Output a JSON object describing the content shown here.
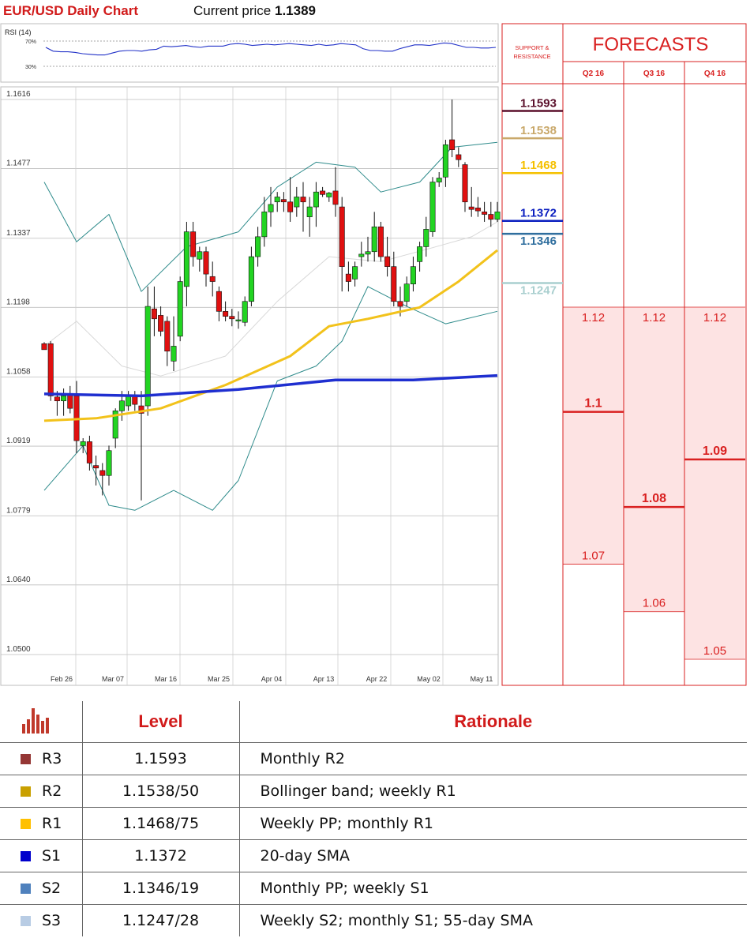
{
  "header": {
    "title": "EUR/USD Daily Chart",
    "price_label": "Current price",
    "price_value": "1.1389"
  },
  "rsi": {
    "label": "RSI (14)",
    "levels": [
      "70%",
      "30%"
    ],
    "values": [
      60,
      54,
      53,
      53,
      52,
      50,
      49,
      48,
      48,
      51,
      54,
      55,
      55,
      54,
      56,
      57,
      62,
      61,
      62,
      63,
      61,
      60,
      62,
      62,
      62,
      65,
      66,
      65,
      63,
      64,
      65,
      64,
      65,
      66,
      65,
      64,
      63,
      65,
      63,
      64,
      66,
      65,
      64,
      58,
      55,
      55,
      54,
      54,
      58,
      61,
      64,
      64,
      63,
      65,
      67,
      66,
      63,
      60,
      60,
      59,
      59,
      60
    ]
  },
  "chart_data": {
    "type": "candlestick",
    "y_ticks": [
      "1.1616",
      "1.1477",
      "1.1337",
      "1.1198",
      "1.1058",
      "1.0919",
      "1.0779",
      "1.0640",
      "1.0500"
    ],
    "ylim": [
      1.05,
      1.1616
    ],
    "x_ticks": [
      "Feb 26",
      "Mar 07",
      "Mar 16",
      "Mar 25",
      "Apr 04",
      "Apr 13",
      "Apr 22",
      "May 02",
      "May 11"
    ],
    "candles": [
      [
        1.1125,
        1.1128,
        1.1115,
        1.1113
      ],
      [
        1.1125,
        1.113,
        1.101,
        1.102
      ],
      [
        1.1018,
        1.103,
        1.098,
        1.101
      ],
      [
        1.101,
        1.1035,
        1.098,
        1.102
      ],
      [
        1.1022,
        1.104,
        1.0985,
        1.0995
      ],
      [
        1.102,
        1.105,
        1.0905,
        1.093
      ],
      [
        1.092,
        1.0935,
        1.0905,
        1.0928
      ],
      [
        1.0928,
        1.094,
        1.087,
        1.0885
      ],
      [
        1.088,
        1.09,
        1.084,
        1.0875
      ],
      [
        1.087,
        1.0885,
        1.082,
        1.086
      ],
      [
        1.086,
        1.092,
        1.084,
        1.091
      ],
      [
        1.0935,
        1.0995,
        1.0915,
        1.099
      ],
      [
        1.099,
        1.103,
        1.097,
        1.101
      ],
      [
        1.1,
        1.103,
        1.099,
        1.102
      ],
      [
        1.1022,
        1.103,
        1.099,
        1.1003
      ],
      [
        1.1,
        1.103,
        1.081,
        1.0985
      ],
      [
        1.1,
        1.124,
        1.098,
        1.12
      ],
      [
        1.1195,
        1.124,
        1.114,
        1.1175
      ],
      [
        1.1182,
        1.12,
        1.114,
        1.115
      ],
      [
        1.117,
        1.118,
        1.108,
        1.111
      ],
      [
        1.109,
        1.118,
        1.107,
        1.112
      ],
      [
        1.114,
        1.126,
        1.113,
        1.125
      ],
      [
        1.124,
        1.137,
        1.12,
        1.135
      ],
      [
        1.135,
        1.137,
        1.128,
        1.13
      ],
      [
        1.1295,
        1.132,
        1.127,
        1.131
      ],
      [
        1.131,
        1.132,
        1.124,
        1.1265
      ],
      [
        1.126,
        1.129,
        1.122,
        1.125
      ],
      [
        1.123,
        1.124,
        1.117,
        1.119
      ],
      [
        1.119,
        1.121,
        1.117,
        1.118
      ],
      [
        1.118,
        1.1195,
        1.116,
        1.1175
      ],
      [
        1.1172,
        1.119,
        1.1155,
        1.1173
      ],
      [
        1.1168,
        1.122,
        1.116,
        1.121
      ],
      [
        1.121,
        1.132,
        1.12,
        1.13
      ],
      [
        1.13,
        1.136,
        1.128,
        1.134
      ],
      [
        1.134,
        1.142,
        1.132,
        1.139
      ],
      [
        1.139,
        1.144,
        1.136,
        1.1405
      ],
      [
        1.141,
        1.143,
        1.139,
        1.142
      ],
      [
        1.1415,
        1.143,
        1.139,
        1.141
      ],
      [
        1.141,
        1.146,
        1.137,
        1.139
      ],
      [
        1.14,
        1.144,
        1.138,
        1.142
      ],
      [
        1.142,
        1.145,
        1.135,
        1.141
      ],
      [
        1.138,
        1.142,
        1.134,
        1.14
      ],
      [
        1.14,
        1.145,
        1.136,
        1.143
      ],
      [
        1.1432,
        1.144,
        1.142,
        1.1425
      ],
      [
        1.142,
        1.143,
        1.141,
        1.1428
      ],
      [
        1.1432,
        1.148,
        1.138,
        1.1405
      ],
      [
        1.14,
        1.142,
        1.123,
        1.128
      ],
      [
        1.1265,
        1.129,
        1.123,
        1.125
      ],
      [
        1.1255,
        1.129,
        1.124,
        1.128
      ],
      [
        1.13,
        1.133,
        1.128,
        1.1305
      ],
      [
        1.1305,
        1.134,
        1.129,
        1.131
      ],
      [
        1.131,
        1.139,
        1.129,
        1.136
      ],
      [
        1.136,
        1.137,
        1.129,
        1.13
      ],
      [
        1.13,
        1.134,
        1.126,
        1.128
      ],
      [
        1.128,
        1.131,
        1.12,
        1.121
      ],
      [
        1.121,
        1.124,
        1.118,
        1.12
      ],
      [
        1.121,
        1.126,
        1.12,
        1.1245
      ],
      [
        1.1245,
        1.13,
        1.123,
        1.128
      ],
      [
        1.129,
        1.133,
        1.127,
        1.132
      ],
      [
        1.132,
        1.138,
        1.13,
        1.1355
      ],
      [
        1.135,
        1.146,
        1.134,
        1.145
      ],
      [
        1.145,
        1.147,
        1.144,
        1.1458
      ],
      [
        1.146,
        1.1535,
        1.144,
        1.1525
      ],
      [
        1.1535,
        1.1616,
        1.15,
        1.1515
      ],
      [
        1.1505,
        1.152,
        1.148,
        1.1495
      ],
      [
        1.1485,
        1.149,
        1.139,
        1.141
      ],
      [
        1.14,
        1.144,
        1.138,
        1.1395
      ],
      [
        1.1398,
        1.142,
        1.138,
        1.1392
      ],
      [
        1.139,
        1.141,
        1.137,
        1.1385
      ],
      [
        1.1385,
        1.141,
        1.136,
        1.1375
      ],
      [
        1.1375,
        1.141,
        1.137,
        1.139
      ]
    ],
    "sma_blue": [
      [
        0,
        1.1024
      ],
      [
        15,
        1.102
      ],
      [
        30,
        1.1033
      ],
      [
        45,
        1.1052
      ],
      [
        57,
        1.1052
      ],
      [
        70,
        1.1061
      ]
    ],
    "sma_gold": [
      [
        0,
        1.097
      ],
      [
        8,
        1.0975
      ],
      [
        18,
        1.0995
      ],
      [
        28,
        1.1042
      ],
      [
        38,
        1.11
      ],
      [
        44,
        1.116
      ],
      [
        50,
        1.1175
      ],
      [
        58,
        1.1198
      ],
      [
        64,
        1.125
      ],
      [
        70,
        1.1313
      ]
    ],
    "sma_light": [
      [
        0,
        1.112
      ],
      [
        5,
        1.117
      ],
      [
        12,
        1.108
      ],
      [
        18,
        1.106
      ],
      [
        28,
        1.11
      ],
      [
        36,
        1.121
      ],
      [
        44,
        1.13
      ],
      [
        52,
        1.129
      ],
      [
        60,
        1.1318
      ],
      [
        66,
        1.134
      ],
      [
        70,
        1.137
      ]
    ],
    "bb_upper": [
      [
        0,
        1.145
      ],
      [
        5,
        1.133
      ],
      [
        10,
        1.1385
      ],
      [
        15,
        1.123
      ],
      [
        22,
        1.132
      ],
      [
        30,
        1.135
      ],
      [
        36,
        1.144
      ],
      [
        42,
        1.149
      ],
      [
        48,
        1.148
      ],
      [
        52,
        1.143
      ],
      [
        58,
        1.145
      ],
      [
        63,
        1.152
      ],
      [
        70,
        1.153
      ]
    ],
    "bb_lower": [
      [
        0,
        1.083
      ],
      [
        6,
        1.092
      ],
      [
        10,
        1.08
      ],
      [
        14,
        1.079
      ],
      [
        20,
        1.083
      ],
      [
        26,
        1.079
      ],
      [
        30,
        1.085
      ],
      [
        36,
        1.105
      ],
      [
        42,
        1.108
      ],
      [
        46,
        1.113
      ],
      [
        50,
        1.124
      ],
      [
        56,
        1.12
      ],
      [
        62,
        1.1165
      ],
      [
        70,
        1.119
      ]
    ],
    "sr_lines": [
      {
        "label": "1.1593",
        "value": 1.1593,
        "color": "#5a0f2a"
      },
      {
        "label": "1.1538",
        "value": 1.1538,
        "color": "#c9a86a"
      },
      {
        "label": "1.1468",
        "value": 1.1468,
        "color": "#f5c000"
      },
      {
        "label": "1.1372",
        "value": 1.1372,
        "color": "#0b1fc0"
      },
      {
        "label": "1.1346",
        "value": 1.1346,
        "color": "#2f6e9e"
      },
      {
        "label": "1.1247",
        "value": 1.1247,
        "color": "#a9cfcf"
      }
    ]
  },
  "forecasts": {
    "title": "FORECASTS",
    "sr_header": "SUPPORT & RESISTANCE",
    "quarters": [
      {
        "label": "Q2 16",
        "high": "1.12",
        "mid": "1.1",
        "low": "1.07",
        "high_v": 1.12,
        "mid_v": 1.1,
        "low_v": 1.07
      },
      {
        "label": "Q3 16",
        "high": "1.12",
        "mid": "1.08",
        "low": "1.06",
        "high_v": 1.12,
        "mid_v": 1.08,
        "low_v": 1.06
      },
      {
        "label": "Q4 16",
        "high": "1.12",
        "mid": "1.09",
        "low": "1.05",
        "high_v": 1.12,
        "mid_v": 1.09,
        "low_v": 1.05
      }
    ]
  },
  "levels_table": {
    "head_level": "Level",
    "head_rationale": "Rationale",
    "rows": [
      {
        "name": "R3",
        "level": "1.1593",
        "rationale": "Monthly R2",
        "color": "#953735"
      },
      {
        "name": "R2",
        "level": "1.1538/50",
        "rationale": "Bollinger band; weekly R1",
        "color": "#c9a000"
      },
      {
        "name": "R1",
        "level": "1.1468/75",
        "rationale": "Weekly PP; monthly R1",
        "color": "#ffc000"
      },
      {
        "name": "S1",
        "level": "1.1372",
        "rationale": "20-day SMA",
        "color": "#0000cc"
      },
      {
        "name": "S2",
        "level": "1.1346/19",
        "rationale": "Monthly PP; weekly S1",
        "color": "#4f81bd"
      },
      {
        "name": "S3",
        "level": "1.1247/28",
        "rationale": "Weekly S2; monthly S1; 55-day SMA",
        "color": "#b8cce4"
      }
    ]
  }
}
